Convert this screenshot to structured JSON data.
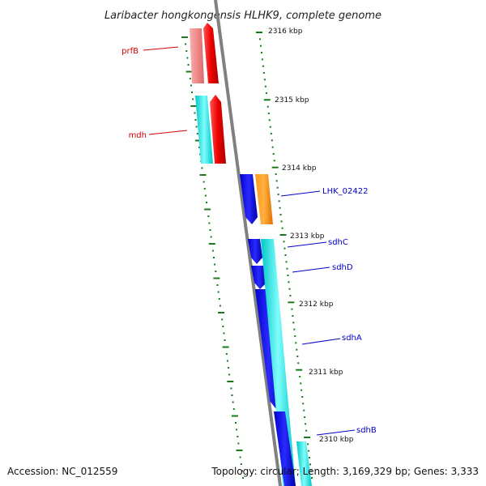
{
  "title": "Laribacter hongkongensis HLHK9, complete genome",
  "footer": {
    "accession": "Accession: NC_012559",
    "summary": "Topology: circular; Length: 3,169,329 bp; Genes: 3,333"
  },
  "scale_labels": [
    "2316 kbp",
    "2315 kbp",
    "2314 kbp",
    "2313 kbp",
    "2312 kbp",
    "2311 kbp",
    "2310 kbp"
  ],
  "gene_labels": {
    "prfB": "prfB",
    "mdh": "mdh",
    "LHK_02422": "LHK_02422",
    "sdhC": "sdhC",
    "sdhD": "sdhD",
    "sdhA": "sdhA",
    "sdhB": "sdhB"
  },
  "colors": {
    "backbone": "#808080",
    "tick": "#1a7a1a",
    "forward_label": "#0000cc",
    "reverse_label": "#d40000",
    "blue_cds": "#0000ee",
    "cyan_cds": "#00e5e5",
    "red_cds": "#ee0000",
    "pink_cds": "#f08a8a",
    "orange_cds": "#ff8800"
  }
}
